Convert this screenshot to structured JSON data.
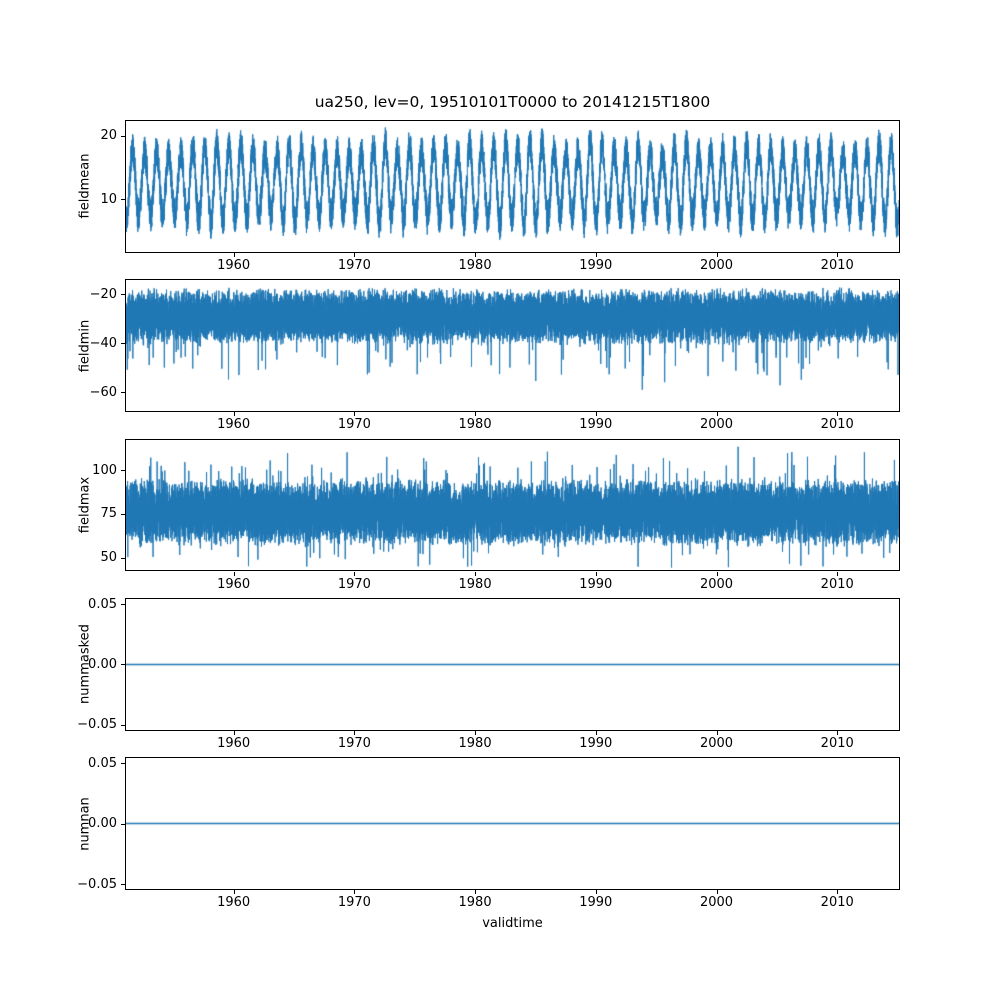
{
  "figure": {
    "background": "#ffffff",
    "kind": "matplotlib-style time-series diagnostics figure, 5 stacked subplots sharing x-axis"
  },
  "chart_data": {
    "type": "line",
    "title": "ua250, lev=0, 19510101T0000 to 20141215T1800",
    "xlabel": "validtime",
    "time_range": [
      "19510101T0000",
      "20141215T1800"
    ],
    "x_range": [
      1951,
      2015.2
    ],
    "x_ticks": {
      "values": [
        1960,
        1970,
        1980,
        1990,
        2000,
        2010
      ],
      "labels": [
        "1960",
        "1970",
        "1980",
        "1990",
        "2000",
        "2010"
      ]
    },
    "line_color": "#1f77b4",
    "grid": false,
    "legend": "none",
    "subplots": [
      {
        "ylabel": "fieldmean",
        "ylim": [
          1.5,
          22.5
        ],
        "ytick_values": [
          10,
          20
        ],
        "ytick_labels": [
          "10",
          "20"
        ],
        "seed": 11,
        "series": {
          "kind": "seasonal",
          "description": "Dense 6-hourly series with a strong annual cycle; oscillates roughly between 3 and 22 around a mean of about 13; one deeper trough near 1972 reaching about 2.",
          "base": 12.5,
          "seasonal_amp": 5.6,
          "noise": 2.6,
          "period_years": 1,
          "approx_min": 2,
          "approx_max": 22
        }
      },
      {
        "ylabel": "fieldmin",
        "ylim": [
          -68,
          -14
        ],
        "ytick_values": [
          -20,
          -40,
          -60
        ],
        "ytick_labels": [
          "−20",
          "−40",
          "−60"
        ],
        "seed": 22,
        "series": {
          "kind": "band",
          "description": "Dense noisy band mostly between about −16 and −45 with occasional downward spikes reaching about −60 to −66 (deepest near 1962).",
          "center": -29,
          "spread": 12,
          "clip_max": -16,
          "spike_prob": 0.012,
          "spike_scale": 16,
          "spike_sign": -1,
          "approx_min": -66,
          "approx_max": -16
        }
      },
      {
        "ylabel": "fieldmax",
        "ylim": [
          42,
          118
        ],
        "ytick_values": [
          50,
          75,
          100
        ],
        "ytick_labels": [
          "50",
          "75",
          "100"
        ],
        "seed": 33,
        "series": {
          "kind": "band",
          "description": "Dense noisy band centered near 75, mostly between about 55 and 100, with spikes up to about 115 and down to about 45.",
          "center": 76,
          "spread": 20,
          "clip_min": 44,
          "clip_max": 117,
          "spike_prob": 0.03,
          "spike_scale": 16,
          "spike_sign": 0,
          "approx_min": 45,
          "approx_max": 115
        }
      },
      {
        "ylabel": "nummasked",
        "ylim": [
          -0.055,
          0.055
        ],
        "ytick_values": [
          0.05,
          0.0,
          -0.05
        ],
        "ytick_labels": [
          "0.05",
          "0.00",
          "−0.05"
        ],
        "seed": 44,
        "series": {
          "kind": "constant",
          "description": "Constant zero for the whole period.",
          "value": 0
        }
      },
      {
        "ylabel": "numnan",
        "ylim": [
          -0.055,
          0.055
        ],
        "ytick_values": [
          0.05,
          0.0,
          -0.05
        ],
        "ytick_labels": [
          "0.05",
          "0.00",
          "−0.05"
        ],
        "seed": 55,
        "series": {
          "kind": "constant",
          "description": "Constant zero for the whole period.",
          "value": 0
        }
      }
    ]
  }
}
